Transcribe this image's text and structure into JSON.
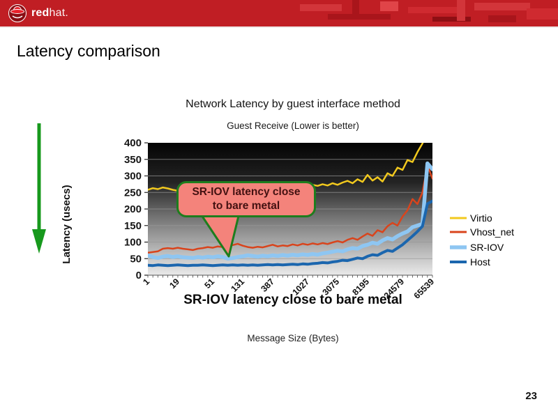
{
  "header": {
    "logo_bold": "red",
    "logo_rest": "hat.",
    "brand_red": "#c01e24"
  },
  "slide": {
    "title": "Latency comparison",
    "page_number": "23"
  },
  "decor": {
    "arrow_color": "#17991d"
  },
  "callout": {
    "line1": "SR-IOV latency close",
    "line2": "to bare metal",
    "fill": "#f4837b",
    "border": "#1e7d1e",
    "text_color": "#431111"
  },
  "chart_data": {
    "type": "line",
    "title": "Network Latency by guest interface method",
    "subtitle": "Guest Receive (Lower is better)",
    "xlabel": "Message Size (Bytes)",
    "ylabel": "Latency (usecs)",
    "note_below": "SR-IOV latency close to bare metal",
    "ylim": [
      0,
      400
    ],
    "y_ticks": [
      0,
      50,
      100,
      150,
      200,
      250,
      300,
      350,
      400
    ],
    "x_tick_labels": [
      "1",
      "19",
      "51",
      "131",
      "387",
      "1027",
      "3075",
      "8195",
      "24579",
      "65539"
    ],
    "x_tick_indices": [
      0,
      6,
      13,
      19,
      25,
      32,
      38,
      44,
      51,
      57
    ],
    "n_points": 58,
    "grid": true,
    "legend_position": "right",
    "plot_bg_gradient": [
      "#040404",
      "#eaeaea"
    ],
    "series": [
      {
        "name": "Virtio",
        "color": "#f2c91e",
        "width": 2.5,
        "values": [
          258,
          263,
          260,
          265,
          262,
          258,
          255,
          252,
          250,
          253,
          251,
          254,
          252,
          255,
          253,
          256,
          254,
          257,
          255,
          258,
          256,
          259,
          257,
          260,
          262,
          265,
          268,
          270,
          269,
          271,
          270,
          272,
          269,
          273,
          270,
          275,
          271,
          278,
          273,
          280,
          285,
          278,
          290,
          282,
          303,
          286,
          296,
          283,
          308,
          300,
          325,
          318,
          348,
          342,
          372,
          398,
          435,
          455
        ]
      },
      {
        "name": "Vhost_net",
        "color": "#d9441c",
        "width": 2.5,
        "values": [
          68,
          70,
          72,
          80,
          82,
          80,
          83,
          80,
          78,
          76,
          80,
          82,
          85,
          83,
          87,
          85,
          88,
          91,
          95,
          89,
          85,
          83,
          86,
          84,
          88,
          92,
          87,
          90,
          88,
          93,
          90,
          95,
          92,
          96,
          93,
          97,
          94,
          99,
          103,
          99,
          107,
          112,
          107,
          117,
          126,
          119,
          136,
          130,
          148,
          158,
          150,
          177,
          196,
          230,
          215,
          250,
          332,
          292
        ]
      },
      {
        "name": "SR-IOV",
        "color": "#8ec6f2",
        "width": 5.5,
        "values": [
          60,
          55,
          52,
          56,
          58,
          55,
          57,
          54,
          53,
          52,
          55,
          53,
          56,
          54,
          57,
          55,
          50,
          52,
          55,
          57,
          60,
          58,
          56,
          59,
          57,
          60,
          58,
          61,
          59,
          62,
          60,
          63,
          61,
          64,
          62,
          66,
          68,
          71,
          74,
          72,
          78,
          82,
          80,
          88,
          92,
          98,
          95,
          105,
          112,
          108,
          118,
          126,
          132,
          145,
          150,
          155,
          338,
          320
        ]
      },
      {
        "name": "Host",
        "color": "#1b66ae",
        "width": 4,
        "values": [
          30,
          29,
          31,
          30,
          29,
          30,
          31,
          30,
          29,
          30,
          30,
          31,
          30,
          29,
          30,
          31,
          30,
          31,
          30,
          31,
          30,
          31,
          30,
          31,
          32,
          31,
          32,
          31,
          32,
          33,
          32,
          34,
          33,
          35,
          36,
          38,
          37,
          40,
          42,
          45,
          44,
          48,
          52,
          50,
          57,
          62,
          60,
          68,
          75,
          72,
          82,
          92,
          105,
          118,
          132,
          148,
          216,
          224
        ]
      }
    ]
  }
}
